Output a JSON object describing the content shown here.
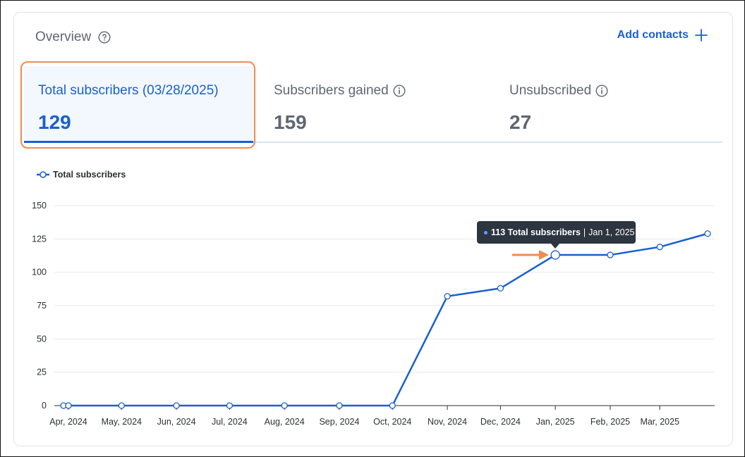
{
  "overview": {
    "title": "Overview",
    "add_contacts_label": "Add contacts"
  },
  "tabs": [
    {
      "label": "Total subscribers (03/28/2025)",
      "value": "129"
    },
    {
      "label": "Subscribers gained",
      "value": "159"
    },
    {
      "label": "Unsubscribed",
      "value": "27"
    }
  ],
  "legend_label": "Total subscribers",
  "tooltip": {
    "value_text": "113 Total subscribers",
    "date_text": "Jan 1, 2025"
  },
  "colors": {
    "accent": "#1a5fd0",
    "highlight": "#ef8c4f",
    "tooltip_bg": "#2d3540"
  },
  "chart_data": {
    "type": "line",
    "title": "",
    "xlabel": "",
    "ylabel": "",
    "ylim": [
      0,
      150
    ],
    "yticks": [
      0,
      25,
      50,
      75,
      100,
      125,
      150
    ],
    "xtick_labels": [
      "Apr, 2024",
      "May, 2024",
      "Jun, 2024",
      "Jul, 2024",
      "Aug, 2024",
      "Sep, 2024",
      "Oct, 2024",
      "Nov, 2024",
      "Dec, 2024",
      "Jan, 2025",
      "Feb, 2025",
      "Mar, 2025"
    ],
    "legend_position": "top-left",
    "grid": true,
    "series": [
      {
        "name": "Total subscribers",
        "points": [
          {
            "x": "2024-03-28",
            "y": 0
          },
          {
            "x": "2024-04-01",
            "y": 0
          },
          {
            "x": "2024-05-01",
            "y": 0
          },
          {
            "x": "2024-06-01",
            "y": 0
          },
          {
            "x": "2024-07-01",
            "y": 0
          },
          {
            "x": "2024-08-01",
            "y": 0
          },
          {
            "x": "2024-09-01",
            "y": 0
          },
          {
            "x": "2024-10-01",
            "y": 0
          },
          {
            "x": "2024-11-01",
            "y": 82
          },
          {
            "x": "2024-12-01",
            "y": 88
          },
          {
            "x": "2025-01-01",
            "y": 113
          },
          {
            "x": "2025-02-01",
            "y": 113
          },
          {
            "x": "2025-03-01",
            "y": 119
          },
          {
            "x": "2025-03-28",
            "y": 129
          }
        ]
      }
    ]
  }
}
